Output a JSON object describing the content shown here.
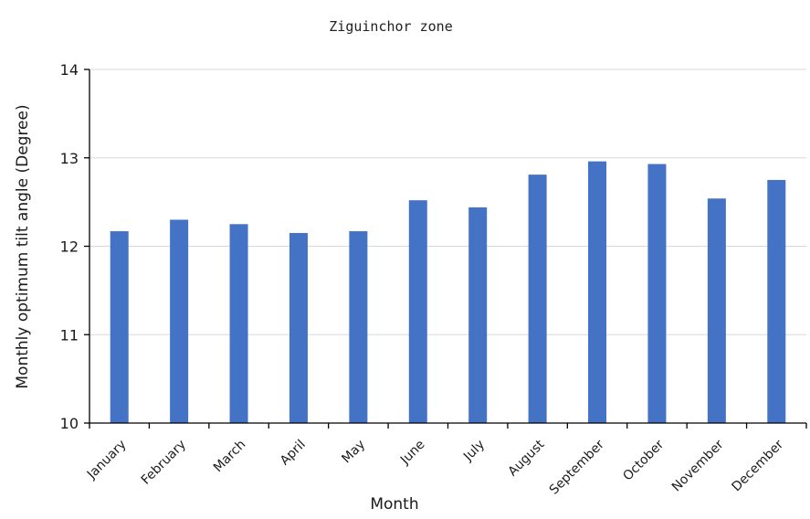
{
  "chart_data": {
    "type": "bar",
    "title": "Ziguinchor  zone",
    "xlabel": "Month",
    "ylabel": "Monthly optimum tilt angle (Degree)",
    "categories": [
      "January",
      "February",
      "March",
      "April",
      "May",
      "June",
      "July",
      "August",
      "September",
      "October",
      "November",
      "December"
    ],
    "values": [
      12.17,
      12.3,
      12.25,
      12.15,
      12.17,
      12.52,
      12.44,
      12.81,
      12.96,
      12.93,
      12.54,
      12.75
    ],
    "ylim": [
      10,
      14
    ],
    "yticks": [
      "10",
      "11",
      "12",
      "13",
      "14"
    ],
    "grid": true,
    "legend": "none",
    "bar_color": "#4472C4",
    "grid_color": "#d9d9d9",
    "axis_color": "#000000"
  }
}
